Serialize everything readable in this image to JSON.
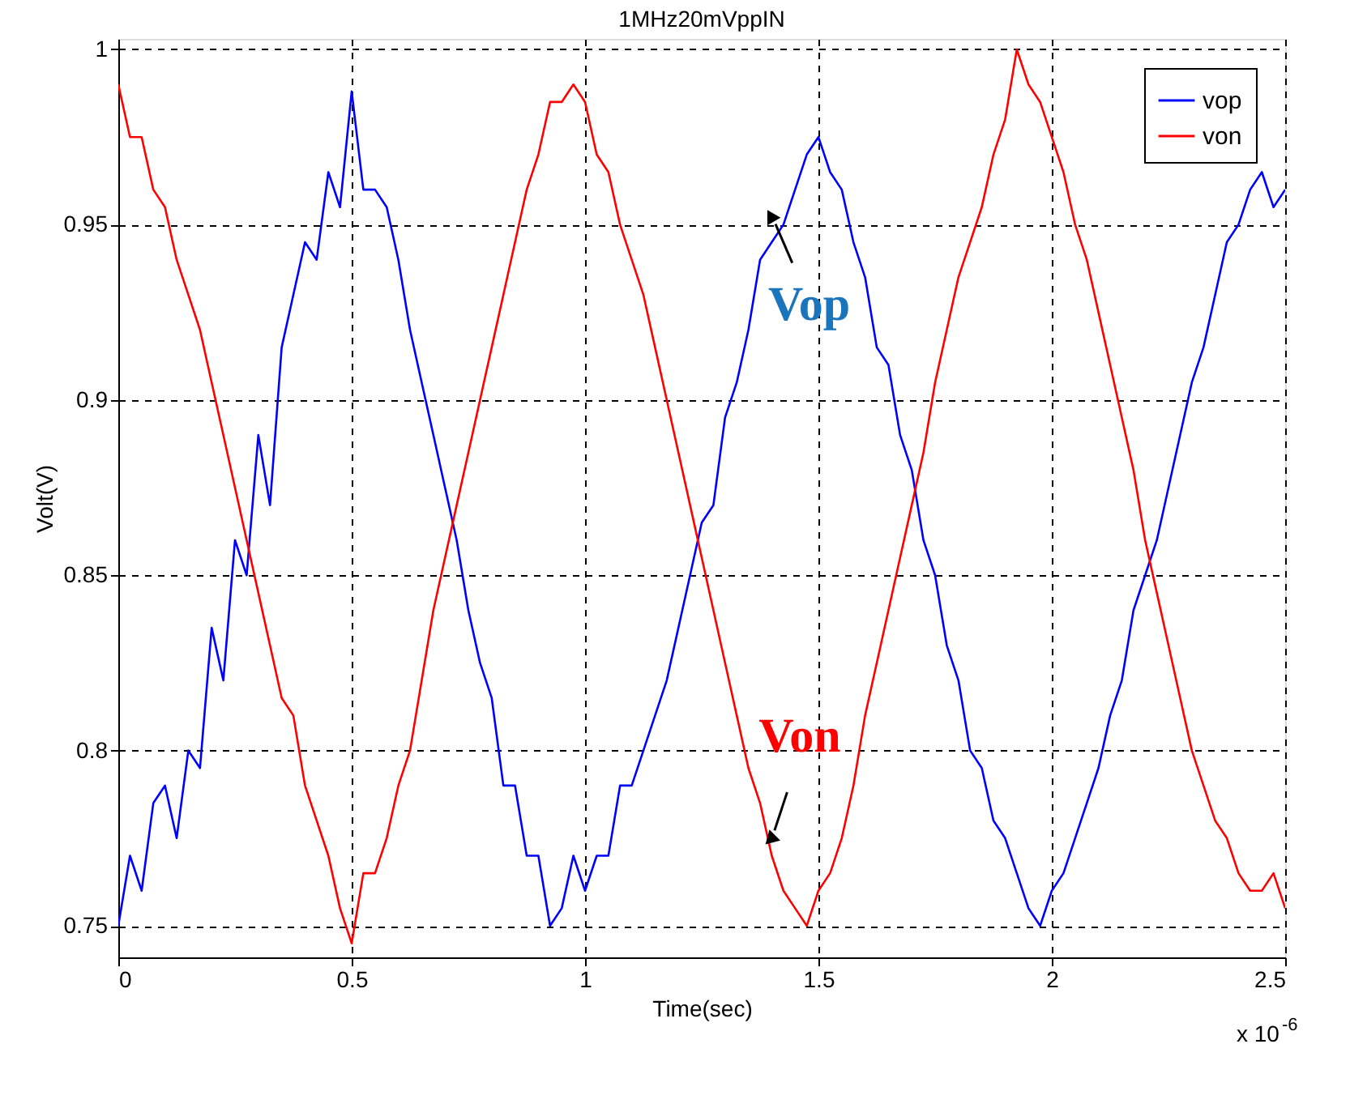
{
  "chart_data": {
    "type": "line",
    "title": "1MHz20mVppIN",
    "xlabel": "Time(sec)",
    "ylabel": "Volt(V)",
    "x": [
      0,
      0.025,
      0.05,
      0.075,
      0.1,
      0.125,
      0.15,
      0.175,
      0.2,
      0.225,
      0.25,
      0.275,
      0.3,
      0.325,
      0.35,
      0.375,
      0.4,
      0.425,
      0.45,
      0.475,
      0.5,
      0.525,
      0.55,
      0.575,
      0.6,
      0.625,
      0.65,
      0.675,
      0.7,
      0.725,
      0.75,
      0.775,
      0.8,
      0.825,
      0.85,
      0.875,
      0.9,
      0.925,
      0.95,
      0.975,
      1.0,
      1.025,
      1.05,
      1.075,
      1.1,
      1.125,
      1.15,
      1.175,
      1.2,
      1.225,
      1.25,
      1.275,
      1.3,
      1.325,
      1.35,
      1.375,
      1.4,
      1.425,
      1.45,
      1.475,
      1.5,
      1.525,
      1.55,
      1.575,
      1.6,
      1.625,
      1.65,
      1.675,
      1.7,
      1.725,
      1.75,
      1.775,
      1.8,
      1.825,
      1.85,
      1.875,
      1.9,
      1.925,
      1.95,
      1.975,
      2.0,
      2.025,
      2.05,
      2.075,
      2.1,
      2.125,
      2.15,
      2.175,
      2.2,
      2.225,
      2.25,
      2.275,
      2.3,
      2.325,
      2.35,
      2.375,
      2.4,
      2.425,
      2.45,
      2.475,
      2.5
    ],
    "series": [
      {
        "name": "vop",
        "color": "#0000ff",
        "values": [
          0.75,
          0.77,
          0.76,
          0.785,
          0.79,
          0.775,
          0.8,
          0.795,
          0.835,
          0.82,
          0.86,
          0.85,
          0.89,
          0.87,
          0.915,
          0.93,
          0.945,
          0.94,
          0.965,
          0.955,
          0.988,
          0.96,
          0.96,
          0.955,
          0.94,
          0.92,
          0.905,
          0.89,
          0.875,
          0.86,
          0.84,
          0.825,
          0.815,
          0.79,
          0.79,
          0.77,
          0.77,
          0.75,
          0.755,
          0.77,
          0.76,
          0.77,
          0.77,
          0.79,
          0.79,
          0.8,
          0.81,
          0.82,
          0.835,
          0.85,
          0.865,
          0.87,
          0.895,
          0.905,
          0.92,
          0.94,
          0.945,
          0.95,
          0.96,
          0.97,
          0.975,
          0.965,
          0.96,
          0.945,
          0.935,
          0.915,
          0.91,
          0.89,
          0.88,
          0.86,
          0.85,
          0.83,
          0.82,
          0.8,
          0.795,
          0.78,
          0.775,
          0.765,
          0.755,
          0.75,
          0.76,
          0.765,
          0.775,
          0.785,
          0.795,
          0.81,
          0.82,
          0.84,
          0.85,
          0.86,
          0.875,
          0.89,
          0.905,
          0.915,
          0.93,
          0.945,
          0.95,
          0.96,
          0.965,
          0.955,
          0.96
        ]
      },
      {
        "name": "von",
        "color": "#ff0000",
        "values": [
          0.99,
          0.975,
          0.975,
          0.96,
          0.955,
          0.94,
          0.93,
          0.92,
          0.905,
          0.89,
          0.875,
          0.86,
          0.845,
          0.83,
          0.815,
          0.81,
          0.79,
          0.78,
          0.77,
          0.755,
          0.745,
          0.765,
          0.765,
          0.775,
          0.79,
          0.8,
          0.82,
          0.84,
          0.855,
          0.87,
          0.885,
          0.9,
          0.915,
          0.93,
          0.945,
          0.96,
          0.97,
          0.985,
          0.985,
          0.99,
          0.985,
          0.97,
          0.965,
          0.95,
          0.94,
          0.93,
          0.915,
          0.9,
          0.885,
          0.87,
          0.855,
          0.84,
          0.825,
          0.81,
          0.795,
          0.785,
          0.77,
          0.76,
          0.755,
          0.75,
          0.76,
          0.765,
          0.775,
          0.79,
          0.81,
          0.825,
          0.84,
          0.855,
          0.87,
          0.885,
          0.905,
          0.92,
          0.935,
          0.945,
          0.955,
          0.97,
          0.98,
          1.0,
          0.99,
          0.985,
          0.975,
          0.965,
          0.95,
          0.94,
          0.925,
          0.91,
          0.895,
          0.88,
          0.86,
          0.845,
          0.83,
          0.815,
          0.8,
          0.79,
          0.78,
          0.775,
          0.765,
          0.76,
          0.76,
          0.765,
          0.755
        ]
      }
    ],
    "xlim": [
      0,
      2.5
    ],
    "ylim": [
      0.741,
      1.003
    ],
    "xticks": [
      0,
      0.5,
      1,
      1.5,
      2,
      2.5
    ],
    "yticks": [
      0.75,
      0.8,
      0.85,
      0.9,
      0.95,
      1
    ],
    "grid": true,
    "legend": "top right",
    "annotations": [
      {
        "text": "Vop",
        "x": 1.4,
        "y": 0.952
      },
      {
        "text": "Von",
        "x": 1.4,
        "y": 0.775
      },
      "x 10$^{-6}$"
    ]
  }
}
